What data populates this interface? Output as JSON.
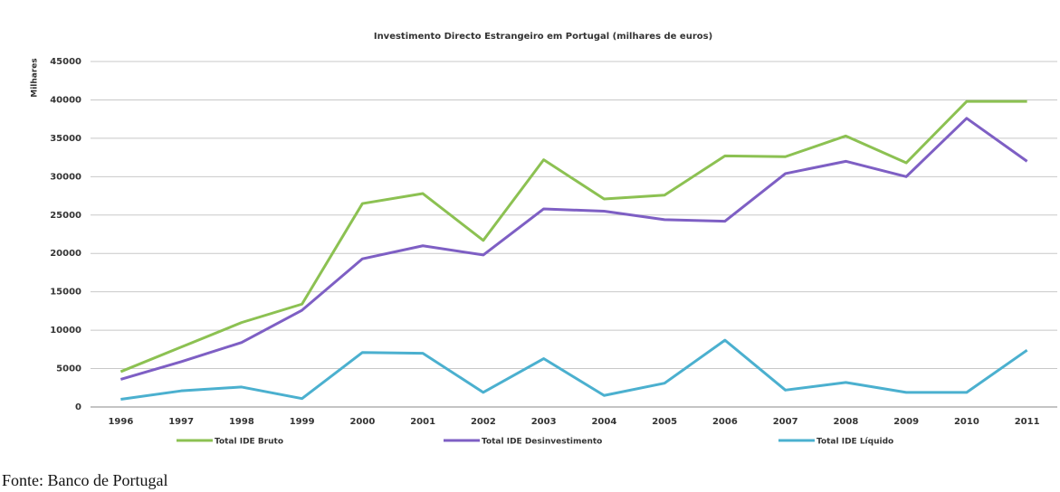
{
  "chart_data": {
    "type": "line",
    "title": "Investimento Directo Estrangeiro em Portugal (milhares de euros)",
    "y_label": "Milhares",
    "source": "Fonte: Banco de Portugal",
    "categories": [
      "1996",
      "1997",
      "1998",
      "1999",
      "2000",
      "2001",
      "2002",
      "2003",
      "2004",
      "2005",
      "2006",
      "2007",
      "2008",
      "2009",
      "2010",
      "2011"
    ],
    "series": [
      {
        "name": "Total IDE Bruto",
        "color": "#8cc152",
        "values": [
          4600,
          7800,
          11000,
          13400,
          26500,
          27800,
          21700,
          32200,
          27100,
          27600,
          32700,
          32600,
          35300,
          31800,
          39800,
          39800
        ]
      },
      {
        "name": "Total IDE Desinvestimento",
        "color": "#7e5fc4",
        "values": [
          3600,
          5900,
          8400,
          12600,
          19300,
          21000,
          19800,
          25800,
          25500,
          24400,
          24200,
          30400,
          32000,
          30000,
          37600,
          32000
        ]
      },
      {
        "name": "Total IDE Líquido",
        "color": "#4bb0cf",
        "values": [
          1000,
          2100,
          2600,
          1100,
          7100,
          7000,
          1900,
          6300,
          1500,
          3100,
          8700,
          2200,
          3200,
          1900,
          1900,
          7400
        ]
      }
    ],
    "ylim": [
      0,
      45000
    ],
    "yticks": [
      0,
      5000,
      10000,
      15000,
      20000,
      25000,
      30000,
      35000,
      40000,
      45000
    ],
    "grid": true,
    "legend": "bottom"
  }
}
